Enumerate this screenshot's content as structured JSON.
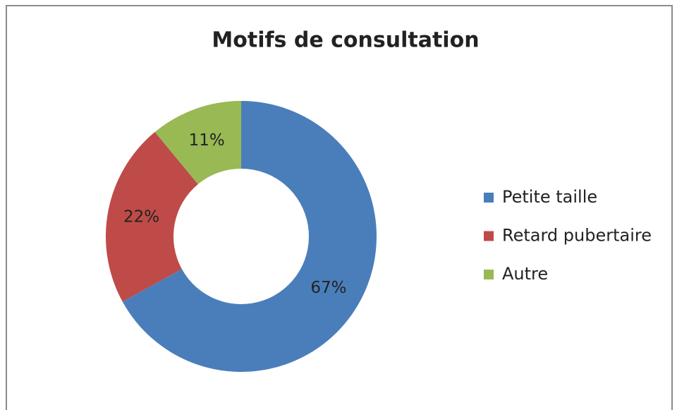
{
  "chart_data": {
    "type": "pie",
    "title": "Motifs de consultation",
    "categories": [
      "Petite taille",
      "Retard pubertaire",
      "Autre"
    ],
    "values": [
      67,
      22,
      11
    ],
    "value_labels": [
      "67%",
      "22%",
      "11%"
    ],
    "colors": [
      "#4a7ebb",
      "#be4b48",
      "#98b954"
    ],
    "donut": true,
    "legend": "right"
  }
}
